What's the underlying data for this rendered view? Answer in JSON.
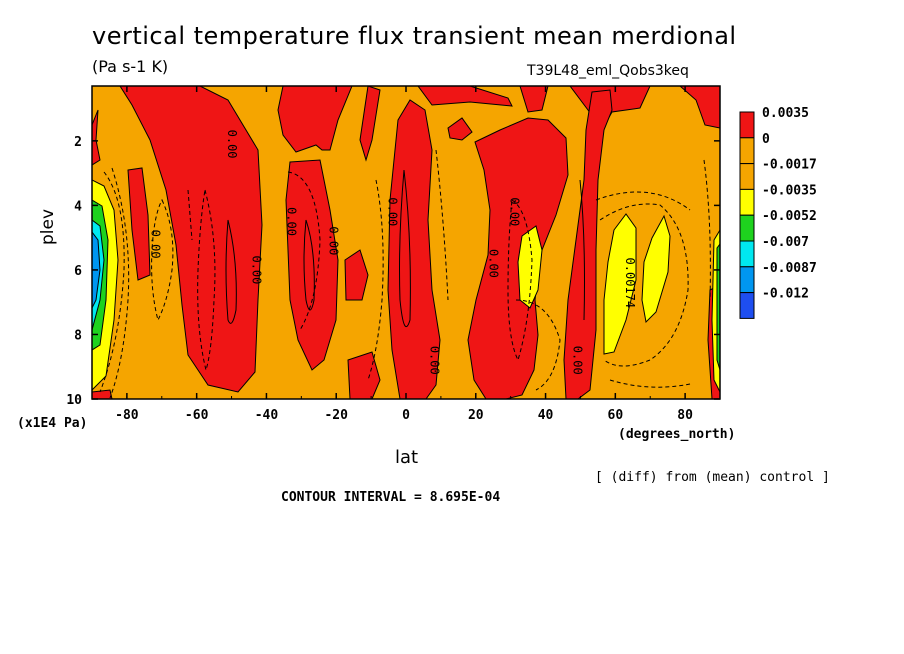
{
  "title": "vertical temperature flux transient mean merdional",
  "units": "(Pa s-1 K)",
  "run_label": "T39L48_eml_Qobs3keq",
  "y_multiplier": "(x1E4 Pa)",
  "x_units": "(degrees_north)",
  "comparison_note": "[ (diff) from (mean) control ]",
  "contour_interval": "CONTOUR INTERVAL = 8.695E-04",
  "chart_data": {
    "type": "heatmap",
    "xlabel": "lat",
    "ylabel": "plev",
    "x_ticks": [
      -80,
      -60,
      -40,
      -20,
      0,
      20,
      40,
      60,
      80
    ],
    "y_ticks": [
      2,
      4,
      6,
      8,
      10
    ],
    "xlim": [
      -90,
      90
    ],
    "ylim": [
      10,
      0.3
    ],
    "colorbar": {
      "labels": [
        "0.0035",
        "0",
        "-0.0017",
        "-0.0035",
        "-0.0052",
        "-0.007",
        "-0.0087",
        "-0.012"
      ],
      "colors": [
        "#ef1515",
        "#f5a500",
        "#f5a500",
        "#ffff00",
        "#1ed21e",
        "#00e8f0",
        "#0096f0",
        "#1e4ef0"
      ]
    },
    "contour_labels": [
      {
        "text": "0.00",
        "lat": -73,
        "plev": 5.2
      },
      {
        "text": "0.00",
        "lat": -51,
        "plev": 2.1
      },
      {
        "text": "0.00",
        "lat": -44,
        "plev": 6.0
      },
      {
        "text": "0.00",
        "lat": -34,
        "plev": 4.5
      },
      {
        "text": "0.00",
        "lat": -22,
        "plev": 5.1
      },
      {
        "text": "0.00",
        "lat": -5,
        "plev": 4.2
      },
      {
        "text": "0.00",
        "lat": 7,
        "plev": 8.8
      },
      {
        "text": "0.00",
        "lat": 24,
        "plev": 5.8
      },
      {
        "text": "0.00",
        "lat": 30,
        "plev": 4.2
      },
      {
        "text": "0.00",
        "lat": 48,
        "plev": 8.8
      },
      {
        "text": "0.00174",
        "lat": 63,
        "plev": 6.4
      }
    ]
  }
}
